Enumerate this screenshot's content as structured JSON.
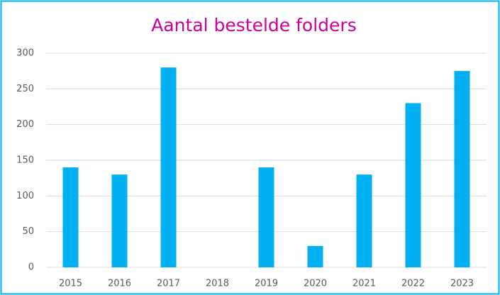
{
  "chart_data": {
    "type": "bar",
    "title": "Aantal bestelde folders",
    "categories": [
      "2015",
      "2016",
      "2017",
      "2018",
      "2019",
      "2020",
      "2021",
      "2022",
      "2023"
    ],
    "values": [
      140,
      130,
      280,
      0,
      140,
      30,
      130,
      230,
      275
    ],
    "color": "#00b0f0",
    "ylim": [
      0,
      300
    ],
    "yticks": [
      0,
      50,
      100,
      150,
      200,
      250,
      300
    ],
    "grid": true
  }
}
